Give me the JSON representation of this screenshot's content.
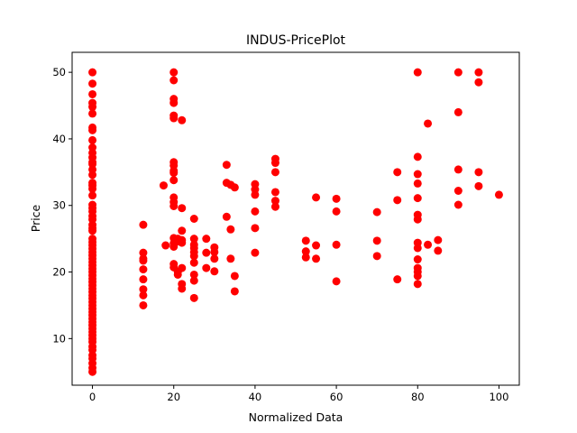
{
  "chart_data": {
    "type": "scatter",
    "title": "INDUS-PricePlot",
    "xlabel": "Normalized Data",
    "ylabel": "Price",
    "xlim": [
      -5,
      105
    ],
    "ylim": [
      3,
      53
    ],
    "xticks": [
      0,
      20,
      40,
      60,
      80,
      100
    ],
    "yticks": [
      10,
      20,
      30,
      40,
      50
    ],
    "grid": false,
    "marker_color": "#ff0000",
    "points": [
      {
        "x": 0,
        "y": 50
      },
      {
        "x": 0,
        "y": 48.3
      },
      {
        "x": 0,
        "y": 46.7
      },
      {
        "x": 0,
        "y": 45.4
      },
      {
        "x": 0,
        "y": 44.8
      },
      {
        "x": 0,
        "y": 43.8
      },
      {
        "x": 0,
        "y": 41.7
      },
      {
        "x": 0,
        "y": 41.3
      },
      {
        "x": 0,
        "y": 39.8
      },
      {
        "x": 0,
        "y": 38.7
      },
      {
        "x": 0,
        "y": 37.9
      },
      {
        "x": 0,
        "y": 37.2
      },
      {
        "x": 0,
        "y": 36.5
      },
      {
        "x": 0,
        "y": 36.2
      },
      {
        "x": 0,
        "y": 35.4
      },
      {
        "x": 0,
        "y": 34.6
      },
      {
        "x": 0,
        "y": 33.4
      },
      {
        "x": 0,
        "y": 33.0
      },
      {
        "x": 0,
        "y": 32.5
      },
      {
        "x": 0,
        "y": 31.5
      },
      {
        "x": 0,
        "y": 30.1
      },
      {
        "x": 0,
        "y": 29.6
      },
      {
        "x": 0,
        "y": 29.1
      },
      {
        "x": 0,
        "y": 28.4
      },
      {
        "x": 0,
        "y": 27.9
      },
      {
        "x": 0,
        "y": 27.1
      },
      {
        "x": 0,
        "y": 26.6
      },
      {
        "x": 0,
        "y": 26.2
      },
      {
        "x": 0,
        "y": 25.0
      },
      {
        "x": 0,
        "y": 24.5
      },
      {
        "x": 0,
        "y": 24.0
      },
      {
        "x": 0,
        "y": 23.5
      },
      {
        "x": 0,
        "y": 23.0
      },
      {
        "x": 0,
        "y": 22.5
      },
      {
        "x": 0,
        "y": 22.0
      },
      {
        "x": 0,
        "y": 21.5
      },
      {
        "x": 0,
        "y": 21.0
      },
      {
        "x": 0,
        "y": 20.5
      },
      {
        "x": 0,
        "y": 20.0
      },
      {
        "x": 0,
        "y": 19.5
      },
      {
        "x": 0,
        "y": 19.0
      },
      {
        "x": 0,
        "y": 18.5
      },
      {
        "x": 0,
        "y": 18.0
      },
      {
        "x": 0,
        "y": 17.5
      },
      {
        "x": 0,
        "y": 17.0
      },
      {
        "x": 0,
        "y": 16.5
      },
      {
        "x": 0,
        "y": 16.0
      },
      {
        "x": 0,
        "y": 15.5
      },
      {
        "x": 0,
        "y": 15.0
      },
      {
        "x": 0,
        "y": 14.5
      },
      {
        "x": 0,
        "y": 14.0
      },
      {
        "x": 0,
        "y": 13.5
      },
      {
        "x": 0,
        "y": 13.0
      },
      {
        "x": 0,
        "y": 12.5
      },
      {
        "x": 0,
        "y": 12.0
      },
      {
        "x": 0,
        "y": 11.5
      },
      {
        "x": 0,
        "y": 11.0
      },
      {
        "x": 0,
        "y": 10.5
      },
      {
        "x": 0,
        "y": 10.0
      },
      {
        "x": 0,
        "y": 9.5
      },
      {
        "x": 0,
        "y": 8.8
      },
      {
        "x": 0,
        "y": 8.3
      },
      {
        "x": 0,
        "y": 7.5
      },
      {
        "x": 0,
        "y": 7.0
      },
      {
        "x": 0,
        "y": 6.3
      },
      {
        "x": 0,
        "y": 5.6
      },
      {
        "x": 0,
        "y": 5.0
      },
      {
        "x": 12.5,
        "y": 27.1
      },
      {
        "x": 12.5,
        "y": 22.9
      },
      {
        "x": 12.5,
        "y": 22.0
      },
      {
        "x": 12.5,
        "y": 21.7
      },
      {
        "x": 12.5,
        "y": 20.4
      },
      {
        "x": 12.5,
        "y": 18.9
      },
      {
        "x": 12.5,
        "y": 17.4
      },
      {
        "x": 12.5,
        "y": 16.5
      },
      {
        "x": 12.5,
        "y": 15.0
      },
      {
        "x": 17.5,
        "y": 33.0
      },
      {
        "x": 18,
        "y": 24.0
      },
      {
        "x": 20,
        "y": 50
      },
      {
        "x": 20,
        "y": 48.8
      },
      {
        "x": 20,
        "y": 46.0
      },
      {
        "x": 20,
        "y": 45.4
      },
      {
        "x": 20,
        "y": 43.5
      },
      {
        "x": 20,
        "y": 43.1
      },
      {
        "x": 20,
        "y": 36.5
      },
      {
        "x": 20,
        "y": 36.0
      },
      {
        "x": 20,
        "y": 35.2
      },
      {
        "x": 20,
        "y": 34.9
      },
      {
        "x": 20,
        "y": 33.8
      },
      {
        "x": 20,
        "y": 31.2
      },
      {
        "x": 20,
        "y": 30.5
      },
      {
        "x": 20,
        "y": 29.9
      },
      {
        "x": 20,
        "y": 25.1
      },
      {
        "x": 20,
        "y": 24.3
      },
      {
        "x": 20,
        "y": 23.8
      },
      {
        "x": 20,
        "y": 21.2
      },
      {
        "x": 20,
        "y": 20.7
      },
      {
        "x": 21,
        "y": 25.0
      },
      {
        "x": 21,
        "y": 24.6
      },
      {
        "x": 21,
        "y": 20.0
      },
      {
        "x": 21,
        "y": 19.6
      },
      {
        "x": 22,
        "y": 42.8
      },
      {
        "x": 22,
        "y": 29.6
      },
      {
        "x": 22,
        "y": 26.2
      },
      {
        "x": 22,
        "y": 24.8
      },
      {
        "x": 22,
        "y": 24.4
      },
      {
        "x": 22,
        "y": 20.6
      },
      {
        "x": 22,
        "y": 18.2
      },
      {
        "x": 22,
        "y": 17.5
      },
      {
        "x": 25,
        "y": 28.0
      },
      {
        "x": 25,
        "y": 25.0
      },
      {
        "x": 25,
        "y": 24.1
      },
      {
        "x": 25,
        "y": 23.6
      },
      {
        "x": 25,
        "y": 23.0
      },
      {
        "x": 25,
        "y": 22.4
      },
      {
        "x": 25,
        "y": 21.4
      },
      {
        "x": 25,
        "y": 19.6
      },
      {
        "x": 25,
        "y": 18.7
      },
      {
        "x": 25,
        "y": 16.1
      },
      {
        "x": 28,
        "y": 25.0
      },
      {
        "x": 28,
        "y": 22.9
      },
      {
        "x": 28,
        "y": 20.6
      },
      {
        "x": 30,
        "y": 23.7
      },
      {
        "x": 30,
        "y": 23.0
      },
      {
        "x": 30,
        "y": 22.0
      },
      {
        "x": 30,
        "y": 20.1
      },
      {
        "x": 33,
        "y": 36.1
      },
      {
        "x": 33,
        "y": 33.4
      },
      {
        "x": 33,
        "y": 28.3
      },
      {
        "x": 34,
        "y": 33.1
      },
      {
        "x": 34,
        "y": 26.4
      },
      {
        "x": 34,
        "y": 22.0
      },
      {
        "x": 35,
        "y": 32.7
      },
      {
        "x": 35,
        "y": 19.4
      },
      {
        "x": 35,
        "y": 17.1
      },
      {
        "x": 40,
        "y": 33.2
      },
      {
        "x": 40,
        "y": 32.4
      },
      {
        "x": 40,
        "y": 31.6
      },
      {
        "x": 40,
        "y": 29.1
      },
      {
        "x": 40,
        "y": 26.6
      },
      {
        "x": 40,
        "y": 22.9
      },
      {
        "x": 45,
        "y": 37.0
      },
      {
        "x": 45,
        "y": 36.4
      },
      {
        "x": 45,
        "y": 35.0
      },
      {
        "x": 45,
        "y": 32.0
      },
      {
        "x": 45,
        "y": 30.7
      },
      {
        "x": 45,
        "y": 29.8
      },
      {
        "x": 52.5,
        "y": 24.7
      },
      {
        "x": 52.5,
        "y": 23.1
      },
      {
        "x": 52.5,
        "y": 22.2
      },
      {
        "x": 55,
        "y": 31.2
      },
      {
        "x": 55,
        "y": 24.0
      },
      {
        "x": 55,
        "y": 22.0
      },
      {
        "x": 60,
        "y": 31.0
      },
      {
        "x": 60,
        "y": 29.1
      },
      {
        "x": 60,
        "y": 24.1
      },
      {
        "x": 60,
        "y": 18.6
      },
      {
        "x": 70,
        "y": 29.0
      },
      {
        "x": 70,
        "y": 24.7
      },
      {
        "x": 70,
        "y": 22.4
      },
      {
        "x": 75,
        "y": 35.0
      },
      {
        "x": 75,
        "y": 30.8
      },
      {
        "x": 75,
        "y": 18.9
      },
      {
        "x": 80,
        "y": 50
      },
      {
        "x": 80,
        "y": 37.3
      },
      {
        "x": 80,
        "y": 34.7
      },
      {
        "x": 80,
        "y": 33.3
      },
      {
        "x": 80,
        "y": 31.1
      },
      {
        "x": 80,
        "y": 28.6
      },
      {
        "x": 80,
        "y": 27.9
      },
      {
        "x": 80,
        "y": 24.4
      },
      {
        "x": 80,
        "y": 23.6
      },
      {
        "x": 80,
        "y": 21.9
      },
      {
        "x": 80,
        "y": 20.6
      },
      {
        "x": 80,
        "y": 20.0
      },
      {
        "x": 80,
        "y": 19.4
      },
      {
        "x": 80,
        "y": 18.2
      },
      {
        "x": 82.5,
        "y": 42.3
      },
      {
        "x": 82.5,
        "y": 24.1
      },
      {
        "x": 85,
        "y": 24.8
      },
      {
        "x": 85,
        "y": 23.2
      },
      {
        "x": 90,
        "y": 50
      },
      {
        "x": 90,
        "y": 44.0
      },
      {
        "x": 90,
        "y": 35.4
      },
      {
        "x": 90,
        "y": 32.2
      },
      {
        "x": 90,
        "y": 30.1
      },
      {
        "x": 95,
        "y": 50
      },
      {
        "x": 95,
        "y": 48.5
      },
      {
        "x": 95,
        "y": 35.0
      },
      {
        "x": 95,
        "y": 32.9
      },
      {
        "x": 100,
        "y": 31.6
      }
    ]
  }
}
